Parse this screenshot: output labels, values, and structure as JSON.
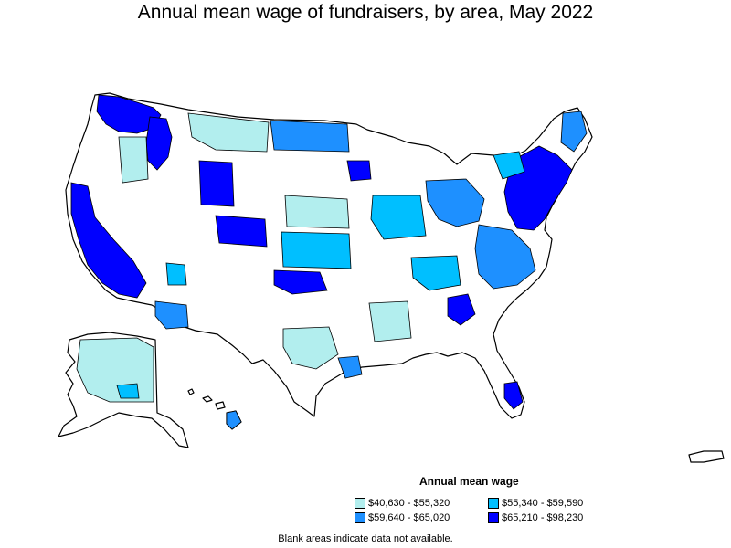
{
  "title": "Annual mean wage of fundraisers, by area, May 2022",
  "legend": {
    "title": "Annual mean wage",
    "items": [
      {
        "label": "$40,630 - $55,320",
        "color": "#b2eeee"
      },
      {
        "label": "$55,340 - $59,590",
        "color": "#00bfff"
      },
      {
        "label": "$59,640 - $65,020",
        "color": "#1e90ff"
      },
      {
        "label": "$65,210 - $98,230",
        "color": "#0000ff"
      }
    ]
  },
  "footnote": "Blank areas indicate data not available.",
  "colors": {
    "blank": "#ffffff",
    "border": "#000000"
  }
}
